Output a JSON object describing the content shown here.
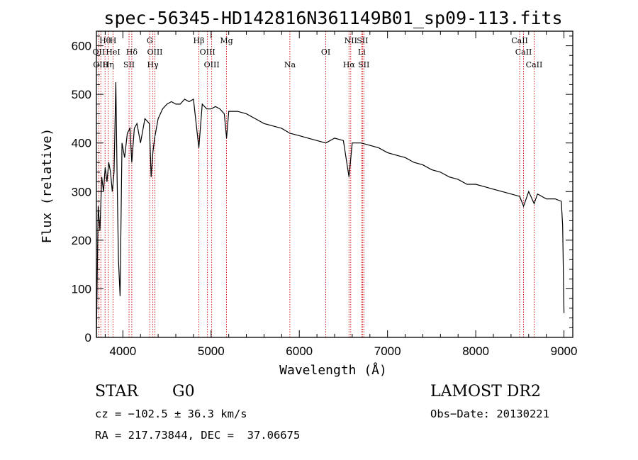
{
  "chart_data": {
    "type": "line",
    "title": "spec-56345-HD142816N361149B01_sp09-113.fits",
    "xlabel": "Wavelength (Å)",
    "ylabel": "Flux (relative)",
    "xlim": [
      3700,
      9100
    ],
    "ylim": [
      0,
      630
    ],
    "x_ticks": [
      4000,
      5000,
      6000,
      7000,
      8000,
      9000
    ],
    "y_ticks": [
      0,
      100,
      200,
      300,
      400,
      500,
      600
    ],
    "grid": false,
    "series": [
      {
        "x": [
          3700,
          3720,
          3740,
          3760,
          3780,
          3800,
          3820,
          3840,
          3860,
          3880,
          3900,
          3920,
          3935,
          3950,
          3968,
          3990,
          4020,
          4050,
          4080,
          4101,
          4130,
          4160,
          4200,
          4250,
          4300,
          4320,
          4340,
          4360,
          4400,
          4450,
          4500,
          4550,
          4600,
          4650,
          4700,
          4750,
          4800,
          4861,
          4900,
          4950,
          5000,
          5050,
          5100,
          5150,
          5175,
          5200,
          5300,
          5400,
          5500,
          5600,
          5700,
          5800,
          5893,
          6000,
          6100,
          6200,
          6300,
          6400,
          6500,
          6563,
          6600,
          6700,
          6800,
          6900,
          7000,
          7100,
          7200,
          7300,
          7400,
          7500,
          7600,
          7700,
          7800,
          7900,
          8000,
          8100,
          8200,
          8300,
          8400,
          8498,
          8542,
          8600,
          8662,
          8700,
          8800,
          8900,
          8970,
          8985,
          9000
        ],
        "y": [
          0,
          270,
          220,
          330,
          300,
          350,
          320,
          360,
          340,
          300,
          340,
          525,
          330,
          160,
          85,
          400,
          370,
          420,
          430,
          360,
          430,
          440,
          400,
          450,
          440,
          330,
          380,
          410,
          450,
          470,
          480,
          485,
          480,
          480,
          490,
          485,
          490,
          390,
          480,
          470,
          470,
          475,
          470,
          460,
          410,
          465,
          465,
          460,
          450,
          440,
          435,
          430,
          420,
          415,
          410,
          405,
          400,
          410,
          405,
          330,
          400,
          400,
          395,
          390,
          380,
          375,
          370,
          360,
          355,
          345,
          340,
          330,
          325,
          315,
          315,
          310,
          305,
          300,
          295,
          290,
          270,
          300,
          275,
          295,
          285,
          285,
          280,
          230,
          50
        ]
      }
    ],
    "spectral_lines": [
      {
        "label": "Hθ",
        "x": 3798,
        "row": 0
      },
      {
        "label": "H",
        "x": 3889,
        "row": 0
      },
      {
        "label": "G",
        "x": 4305,
        "row": 0
      },
      {
        "label": "Hβ",
        "x": 4861,
        "row": 0
      },
      {
        "label": "Mg",
        "x": 5175,
        "row": 0
      },
      {
        "label": "NII",
        "x": 6583,
        "row": 0
      },
      {
        "label": "SII",
        "x": 6716,
        "row": 0
      },
      {
        "label": "CaII",
        "x": 8498,
        "row": 0
      },
      {
        "label": "OII",
        "x": 3727,
        "row": 1
      },
      {
        "label": "HeI",
        "x": 3889,
        "row": 1
      },
      {
        "label": "Hδ",
        "x": 4101,
        "row": 1
      },
      {
        "label": "OIII",
        "x": 4363,
        "row": 1
      },
      {
        "label": "OIII",
        "x": 4959,
        "row": 1
      },
      {
        "label": "OI",
        "x": 6300,
        "row": 1
      },
      {
        "label": "Li",
        "x": 6708,
        "row": 1
      },
      {
        "label": "CaII",
        "x": 8542,
        "row": 1
      },
      {
        "label": "OIII",
        "x": 3750,
        "row": 2
      },
      {
        "label": "Hη",
        "x": 3835,
        "row": 2
      },
      {
        "label": "SII",
        "x": 4070,
        "row": 2
      },
      {
        "label": "Hγ",
        "x": 4340,
        "row": 2
      },
      {
        "label": "OIII",
        "x": 5007,
        "row": 2
      },
      {
        "label": "Na",
        "x": 5893,
        "row": 2
      },
      {
        "label": "Hα",
        "x": 6563,
        "row": 2
      },
      {
        "label": "SII",
        "x": 6731,
        "row": 2
      },
      {
        "label": "CaII",
        "x": 8662,
        "row": 2
      }
    ]
  },
  "info": {
    "object_type": "STAR",
    "subclass": "G0",
    "survey": "LAMOST DR2",
    "redshift": "cz = −102.5 ± 36.3 km/s",
    "obs_date": "Obs−Date: 20130221",
    "coords": "RA = 217.73844, DEC =  37.06675"
  },
  "colors": {
    "spectrum": "#000000",
    "line_markers": "#cc0000",
    "axes": "#000000"
  }
}
